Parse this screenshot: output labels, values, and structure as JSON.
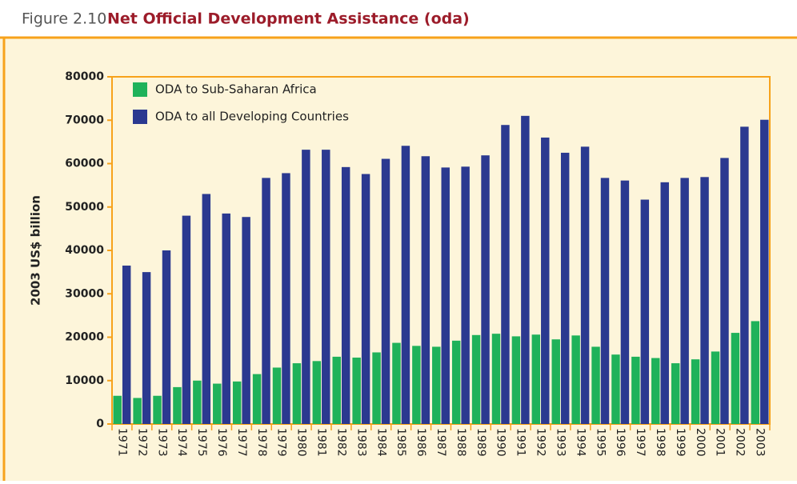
{
  "figure_label": "Figure 2.10",
  "chart_data": {
    "type": "bar",
    "title": "Net Official Development Assistance (oda)",
    "y_label": "2003 US$ billion",
    "categories": [
      "1971",
      "1972",
      "1973",
      "1974",
      "1975",
      "1976",
      "1977",
      "1978",
      "1979",
      "1980",
      "1981",
      "1982",
      "1983",
      "1984",
      "1985",
      "1986",
      "1987",
      "1988",
      "1989",
      "1990",
      "1991",
      "1992",
      "1993",
      "1994",
      "1995",
      "1996",
      "1997",
      "1998",
      "1999",
      "2000",
      "2001",
      "2002",
      "2003"
    ],
    "series": [
      {
        "name": "ODA to Sub-Saharan Africa",
        "color": "#1fb25a",
        "values": [
          6500,
          6000,
          6500,
          8500,
          10000,
          9300,
          9800,
          11500,
          13000,
          14000,
          14500,
          15500,
          15300,
          16500,
          18700,
          18000,
          17800,
          19200,
          20500,
          20800,
          20200,
          20600,
          19500,
          20400,
          17800,
          16000,
          15500,
          15200,
          14000,
          14900,
          16700,
          21000,
          23700
        ]
      },
      {
        "name": "ODA to all Developing Countries",
        "color": "#2b3990",
        "values": [
          36500,
          35000,
          40000,
          48000,
          53000,
          48500,
          47700,
          56700,
          57800,
          63200,
          63200,
          59200,
          57600,
          61100,
          64100,
          61700,
          59100,
          59300,
          61900,
          68900,
          71000,
          66000,
          62500,
          63900,
          56700,
          56100,
          51700,
          55700,
          56700,
          56900,
          61300,
          68500,
          70100
        ]
      }
    ],
    "ylim": [
      0,
      80000
    ],
    "yticks": [
      0,
      10000,
      20000,
      30000,
      40000,
      50000,
      60000,
      70000,
      80000
    ],
    "legend": "upper left"
  }
}
